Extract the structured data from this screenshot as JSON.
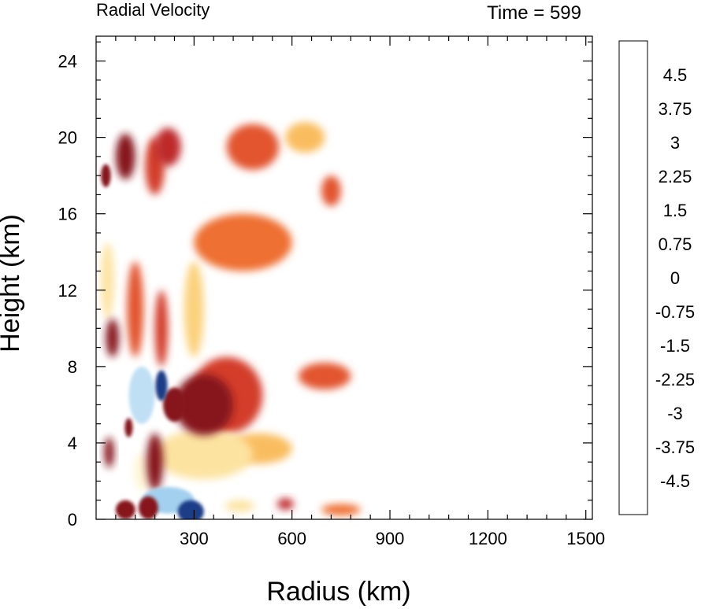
{
  "chart_data": {
    "type": "heatmap",
    "title": "Radial Velocity",
    "subtitle": "Time = 599",
    "xlabel": "Radius (km)",
    "ylabel": "Height (km)",
    "xlim": [
      0,
      1520
    ],
    "ylim": [
      0,
      25.3
    ],
    "x_ticks": [
      300,
      600,
      900,
      1200,
      1500
    ],
    "y_ticks": [
      0,
      4,
      8,
      12,
      16,
      20,
      24
    ],
    "colorbar": {
      "min": -5.25,
      "max": 5.25,
      "step": 0.25,
      "tick_labels": [
        "4.5",
        "3.75",
        "3",
        "2.25",
        "1.5",
        "0.75",
        "0",
        "-0.75",
        "-1.5",
        "-2.25",
        "-3",
        "-3.75",
        "-4.5"
      ],
      "tick_values": [
        4.5,
        3.75,
        3,
        2.25,
        1.5,
        0.75,
        0,
        -0.75,
        -1.5,
        -2.25,
        -3,
        -3.75,
        -4.5
      ],
      "colors": [
        "#1a2a6a",
        "#1f3c87",
        "#2451a0",
        "#2e66b3",
        "#3c7cc2",
        "#5292cf",
        "#6ba7dc",
        "#86bde6",
        "#a3d0ee",
        "#bfdff4",
        "#d5eaf8",
        "#e7f3fb",
        "#f3f9fd",
        "#ffffff",
        "#fffdf0",
        "#fff6d8",
        "#fdeebc",
        "#fce3a0",
        "#fbd27d",
        "#f9bd5e",
        "#f7a546",
        "#f38b35",
        "#ee7030",
        "#e2552e",
        "#d33c2c",
        "#be2a2a",
        "#a21d24",
        "#86141d"
      ]
    },
    "features": [
      {
        "x": 240,
        "y": 6.0,
        "rx": 35,
        "ry": 0.9,
        "v": 4.8
      },
      {
        "x": 200,
        "y": 7.0,
        "rx": 18,
        "ry": 0.8,
        "v": -5.0
      },
      {
        "x": 290,
        "y": 0.4,
        "rx": 40,
        "ry": 0.6,
        "v": -5.0
      },
      {
        "x": 220,
        "y": 1.0,
        "rx": 80,
        "ry": 0.7,
        "v": -3.2
      },
      {
        "x": 160,
        "y": 0.6,
        "rx": 30,
        "ry": 0.6,
        "v": 4.2
      },
      {
        "x": 90,
        "y": 0.5,
        "rx": 30,
        "ry": 0.5,
        "v": 3.5
      },
      {
        "x": 330,
        "y": 6.0,
        "rx": 90,
        "ry": 1.6,
        "v": 2.0
      },
      {
        "x": 400,
        "y": 6.5,
        "rx": 110,
        "ry": 2.0,
        "v": 0.9
      },
      {
        "x": 330,
        "y": 3.4,
        "rx": 150,
        "ry": 1.3,
        "v": -0.9
      },
      {
        "x": 500,
        "y": 3.7,
        "rx": 100,
        "ry": 0.8,
        "v": -0.5
      },
      {
        "x": 140,
        "y": 6.5,
        "rx": 40,
        "ry": 1.5,
        "v": -2.8
      },
      {
        "x": 80,
        "y": 6.0,
        "rx": 30,
        "ry": 1.8,
        "v": -2.0
      },
      {
        "x": 100,
        "y": 4.8,
        "rx": 12,
        "ry": 0.5,
        "v": 3.2
      },
      {
        "x": 40,
        "y": 3.5,
        "rx": 15,
        "ry": 0.8,
        "v": 2.0
      },
      {
        "x": 180,
        "y": 3.0,
        "rx": 25,
        "ry": 1.5,
        "v": 1.8
      },
      {
        "x": 140,
        "y": 2.5,
        "rx": 25,
        "ry": 1.0,
        "v": -1.5
      },
      {
        "x": 50,
        "y": 9.5,
        "rx": 20,
        "ry": 1.0,
        "v": 1.8
      },
      {
        "x": 35,
        "y": 12.5,
        "rx": 20,
        "ry": 2.0,
        "v": -0.8
      },
      {
        "x": 60,
        "y": 16.0,
        "rx": 25,
        "ry": 1.5,
        "v": -1.8
      },
      {
        "x": 30,
        "y": 18.0,
        "rx": 15,
        "ry": 0.6,
        "v": 2.8
      },
      {
        "x": 20,
        "y": 19.5,
        "rx": 15,
        "ry": 0.6,
        "v": -2.0
      },
      {
        "x": 90,
        "y": 19.0,
        "rx": 30,
        "ry": 1.2,
        "v": 1.5
      },
      {
        "x": 180,
        "y": 18.5,
        "rx": 30,
        "ry": 1.5,
        "v": 0.9
      },
      {
        "x": 220,
        "y": 19.5,
        "rx": 40,
        "ry": 1.0,
        "v": 1.0
      },
      {
        "x": 120,
        "y": 11.0,
        "rx": 25,
        "ry": 2.5,
        "v": 0.6
      },
      {
        "x": 300,
        "y": 11.0,
        "rx": 30,
        "ry": 2.5,
        "v": -0.6
      },
      {
        "x": 200,
        "y": 10.0,
        "rx": 20,
        "ry": 2.0,
        "v": 0.8
      },
      {
        "x": 450,
        "y": 14.5,
        "rx": 150,
        "ry": 1.5,
        "v": 0.4
      },
      {
        "x": 480,
        "y": 19.5,
        "rx": 80,
        "ry": 1.2,
        "v": 0.6
      },
      {
        "x": 640,
        "y": 20.0,
        "rx": 60,
        "ry": 0.8,
        "v": -0.4
      },
      {
        "x": 720,
        "y": 17.2,
        "rx": 30,
        "ry": 0.8,
        "v": 0.6
      },
      {
        "x": 700,
        "y": 7.5,
        "rx": 80,
        "ry": 0.7,
        "v": 0.5
      },
      {
        "x": 580,
        "y": 0.8,
        "rx": 25,
        "ry": 0.3,
        "v": 1.2
      },
      {
        "x": 440,
        "y": 0.7,
        "rx": 45,
        "ry": 0.3,
        "v": -0.8
      },
      {
        "x": 750,
        "y": 0.5,
        "rx": 60,
        "ry": 0.3,
        "v": 0.4
      }
    ]
  }
}
